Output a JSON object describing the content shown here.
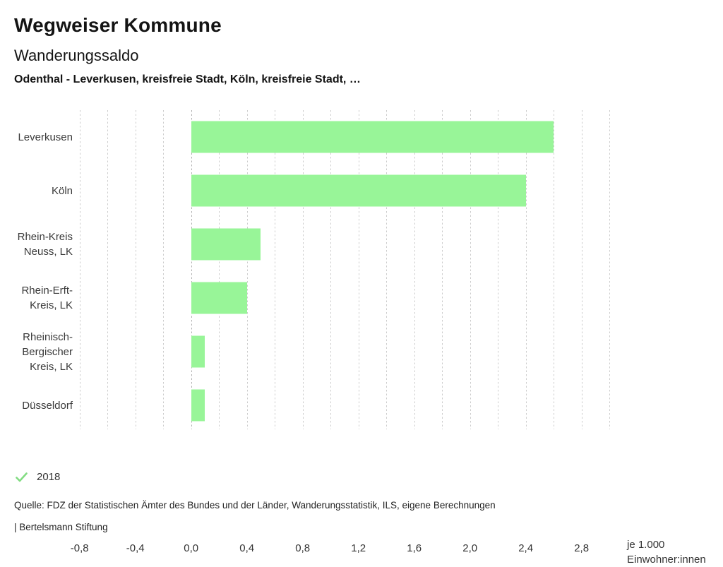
{
  "header": {
    "title": "Wegweiser Kommune",
    "subtitle": "Wanderungssaldo",
    "context": "Odenthal - Leverkusen, kreisfreie Stadt, Köln, kreisfreie Stadt, …"
  },
  "chart_data": {
    "type": "bar",
    "orientation": "horizontal",
    "title": "Wanderungssaldo",
    "subtitle": "Odenthal - Leverkusen, kreisfreie Stadt, Köln, kreisfreie Stadt, …",
    "categories": [
      "Leverkusen",
      "Köln",
      "Rhein-Kreis Neuss, LK",
      "Rhein-Erft-Kreis, LK",
      "Rheinisch-Bergischer Kreis, LK",
      "Düsseldorf"
    ],
    "category_label_lines": [
      [
        "Leverkusen"
      ],
      [
        "Köln"
      ],
      [
        "Rhein-Kreis",
        "Neuss, LK"
      ],
      [
        "Rhein-Erft-",
        "Kreis, LK"
      ],
      [
        "Rheinisch-",
        "Bergischer",
        "Kreis, LK"
      ],
      [
        "Düsseldorf"
      ]
    ],
    "series": [
      {
        "name": "2018",
        "values": [
          2.6,
          2.4,
          0.5,
          0.4,
          0.1,
          0.1
        ]
      }
    ],
    "xlabel": "je 1.000 Einwohner:innen",
    "unit_label_lines": [
      "je 1.000",
      "Einwohner:innen"
    ],
    "xlim": [
      -0.9,
      3.05
    ],
    "grid": {
      "min": -0.8,
      "max": 3.0,
      "step": 0.2
    },
    "xticks": [
      -0.8,
      -0.4,
      0.0,
      0.4,
      0.8,
      1.2,
      1.6,
      2.0,
      2.4,
      2.8
    ],
    "xtick_labels": [
      "-0,8",
      "-0,4",
      "0,0",
      "0,4",
      "0,8",
      "1,2",
      "1,6",
      "2,0",
      "2,4",
      "2,8"
    ],
    "legend_position": "bottom-left",
    "colors": {
      "bar": "#98f598",
      "legend_check": "#82dc82",
      "gridline": "#cccccc",
      "zero_line": "#b0b0b0"
    }
  },
  "legend": {
    "items": [
      {
        "label": "2018",
        "icon": "check-icon"
      }
    ]
  },
  "footer": {
    "source": "Quelle: FDZ der Statistischen Ämter des Bundes und der Länder, Wanderungsstatistik, ILS, eigene Berechnungen",
    "attribution": "| Bertelsmann Stiftung"
  }
}
